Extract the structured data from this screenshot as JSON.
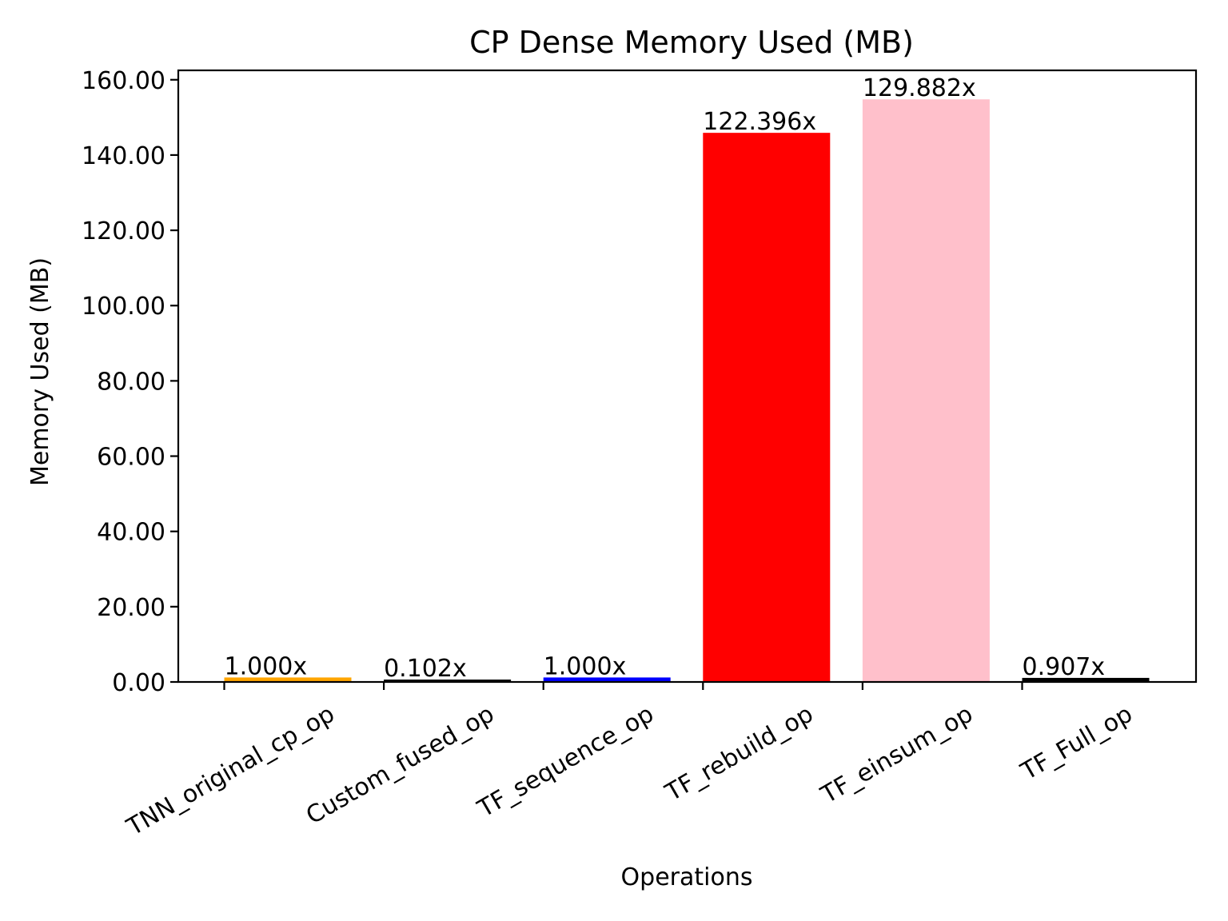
{
  "chart_data": {
    "type": "bar",
    "title": "CP Dense Memory Used (MB)",
    "xlabel": "Operations",
    "ylabel": "Memory Used (MB)",
    "ylim": [
      0,
      162.5
    ],
    "yticks": [
      0,
      20,
      40,
      60,
      80,
      100,
      120,
      140,
      160
    ],
    "ytick_labels": [
      "0.00",
      "20.00",
      "40.00",
      "60.00",
      "80.00",
      "100.00",
      "120.00",
      "140.00",
      "160.00"
    ],
    "grid": false,
    "categories": [
      "TNN_original_cp_op",
      "Custom_fused_op",
      "TF_sequence_op",
      "TF_rebuild_op",
      "TF_einsum_op",
      "TF_Full_op"
    ],
    "values": [
      1.19,
      0.12,
      1.19,
      145.9,
      154.8,
      1.08
    ],
    "bar_labels": [
      "1.000x",
      "0.102x",
      "1.000x",
      "122.396x",
      "129.882x",
      "0.907x"
    ],
    "colors": [
      "#ffa500",
      "#000000",
      "#0000ff",
      "#ff0000",
      "#ffc0cb",
      "#000000"
    ]
  }
}
